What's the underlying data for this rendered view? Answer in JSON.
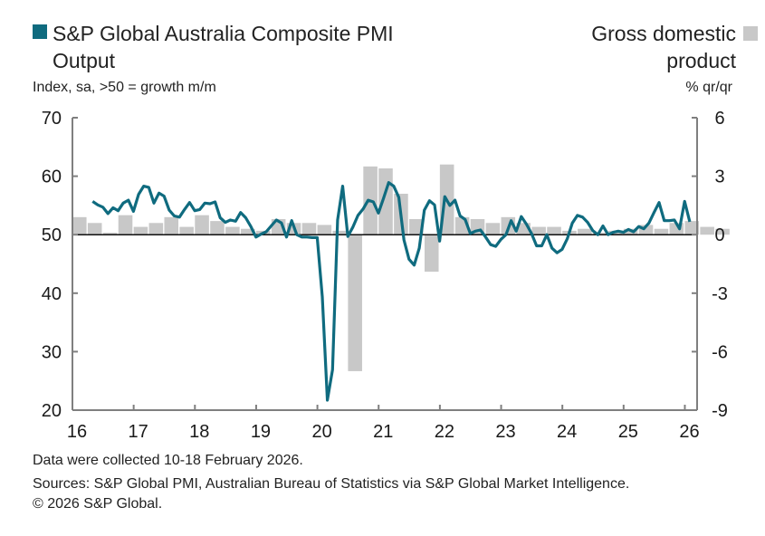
{
  "legend": {
    "pmi_line1": "S&P Global Australia Composite PMI",
    "pmi_line2": "Output",
    "gdp_line1": "Gross domestic",
    "gdp_line2": "product"
  },
  "units": {
    "left": "Index, sa, >50 = growth m/m",
    "right": "% qr/qr"
  },
  "footer": {
    "collected": "Data were collected 10-18 February 2026.",
    "sources": "Sources: S&P Global PMI, Australian Bureau of Statistics via S&P Global Market Intelligence.",
    "copyright": "© 2026 S&P Global."
  },
  "colors": {
    "pmi": "#0f6b7f",
    "gdp": "#c8c8c8",
    "axis": "#7f7f7f"
  },
  "chart_data": {
    "type": "bar+line",
    "x_ticks": [
      "16",
      "17",
      "18",
      "19",
      "20",
      "21",
      "22",
      "23",
      "24",
      "25",
      "26"
    ],
    "xlim": [
      2016,
      2026.2
    ],
    "left_axis": {
      "ticks": [
        70,
        60,
        50,
        40,
        30,
        20
      ],
      "ylim": [
        20,
        70
      ]
    },
    "right_axis": {
      "ticks": [
        6,
        3,
        0,
        -3,
        -6,
        -9
      ],
      "ylim": [
        -9,
        6
      ]
    },
    "gdp_series": {
      "name": "Gross domestic product",
      "start": 2016.0,
      "step": 0.25,
      "values": [
        0.9,
        0.6,
        0.1,
        1.0,
        0.4,
        0.6,
        0.9,
        0.4,
        1.0,
        0.7,
        0.4,
        0.3,
        0.2,
        0.8,
        0.6,
        0.6,
        0.5,
        0.2,
        -7.0,
        3.5,
        3.4,
        2.1,
        0.8,
        -1.9,
        3.6,
        0.9,
        0.8,
        0.6,
        0.9,
        0.6,
        0.4,
        0.4,
        0.2,
        0.3,
        0.1,
        0.2,
        0.3,
        0.5,
        0.3,
        0.6,
        0.7,
        0.4,
        0.3
      ]
    },
    "pmi_series": {
      "name": "S&P Global Australia Composite PMI Output",
      "start": 2016.33,
      "step": 0.08333,
      "values": [
        55.7,
        55.1,
        54.7,
        53.6,
        54.6,
        54.1,
        55.4,
        55.9,
        54.0,
        56.9,
        58.3,
        58.1,
        55.4,
        57.1,
        56.6,
        54.2,
        53.2,
        53.0,
        54.3,
        55.5,
        54.1,
        54.3,
        55.4,
        55.3,
        55.6,
        52.9,
        52.1,
        52.5,
        52.3,
        53.8,
        52.9,
        51.4,
        49.6,
        50.1,
        50.5,
        51.5,
        52.5,
        52.0,
        49.6,
        52.4,
        50.0,
        49.6,
        49.6,
        49.5,
        49.5,
        39.4,
        21.7,
        26.9,
        52.5,
        58.3,
        49.7,
        51.3,
        53.3,
        54.4,
        55.9,
        55.6,
        53.7,
        56.2,
        58.9,
        58.3,
        56.4,
        49.1,
        45.8,
        44.8,
        47.7,
        54.2,
        55.8,
        55.1,
        48.9,
        56.5,
        55.0,
        55.9,
        53.2,
        52.6,
        50.2,
        50.6,
        50.8,
        49.6,
        48.3,
        48.0,
        49.2,
        50.0,
        52.4,
        50.6,
        53.1,
        51.8,
        50.2,
        48.1,
        48.1,
        50.0,
        47.7,
        46.9,
        47.5,
        49.3,
        52.0,
        53.3,
        53.0,
        52.1,
        50.7,
        50.0,
        51.5,
        50.0,
        50.4,
        50.6,
        50.4,
        50.9,
        50.5,
        51.4,
        51.0,
        52.0,
        53.8,
        55.5,
        52.4,
        52.4,
        52.5,
        51.0,
        55.7,
        52.2
      ]
    }
  }
}
